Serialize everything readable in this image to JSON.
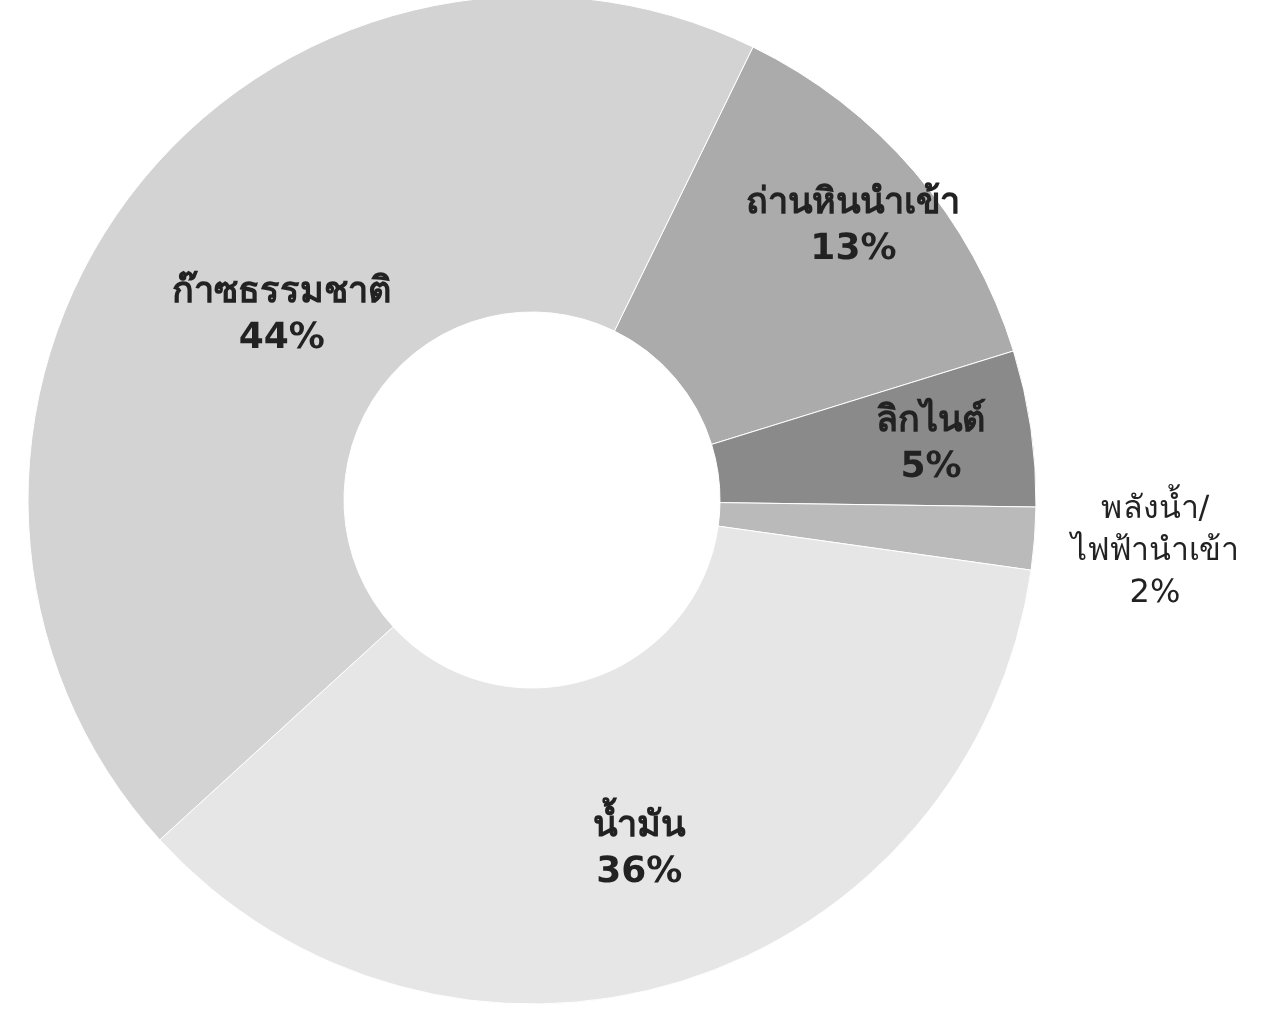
{
  "chart_data": {
    "type": "donut",
    "categories": [
      "ถ่านหินนำเข้า",
      "ลิกไนต์",
      "พลังน้ำ/\nไฟฟ้านำเข้า",
      "น้ำมัน",
      "ก๊าซธรรมชาติ"
    ],
    "values": [
      13,
      5,
      2,
      36,
      44
    ],
    "value_labels": [
      "13%",
      "5%",
      "2%",
      "36%",
      "44%"
    ],
    "colors": [
      "#ababab",
      "#8a8a8a",
      "#bababa",
      "#e6e6e6",
      "#d3d3d3"
    ]
  }
}
